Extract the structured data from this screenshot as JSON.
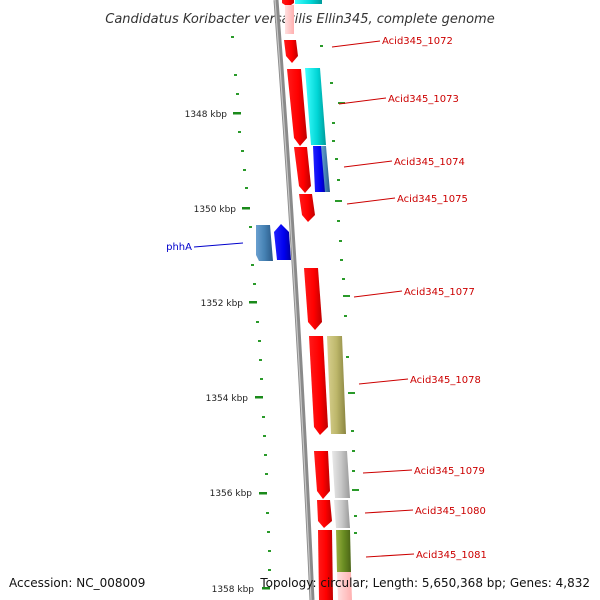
{
  "title": "Candidatus Koribacter versatilis Ellin345, complete genome",
  "footer": {
    "accession": "Accession: NC_008009",
    "summary": "Topology: circular; Length: 5,650,368 bp; Genes: 4,832"
  },
  "colors": {
    "backbone": "#777777",
    "tick": "#1a8a1a",
    "label_red": "#cc0000",
    "label_blue": "#0000cc"
  },
  "ticks": [
    {
      "label": "1348 kbp"
    },
    {
      "label": "1350 kbp"
    },
    {
      "label": "1352 kbp"
    },
    {
      "label": "1354 kbp"
    },
    {
      "label": "1356 kbp"
    },
    {
      "label": "1358 kbp"
    }
  ],
  "genes": [
    {
      "name": "Acid345_1072",
      "color": "#ff0000",
      "strand": "forward"
    },
    {
      "name": "Acid345_1073",
      "color": "#ff0000",
      "strand": "forward"
    },
    {
      "name": "Acid345_1074",
      "color": "#ff0000",
      "strand": "forward"
    },
    {
      "name": "Acid345_1075",
      "color": "#ff0000",
      "strand": "forward"
    },
    {
      "name": "phhA",
      "color": "#4682b4",
      "strand": "reverse"
    },
    {
      "name": "Acid345_1077",
      "color": "#ff0000",
      "strand": "forward"
    },
    {
      "name": "Acid345_1078",
      "color": "#ff0000",
      "strand": "forward"
    },
    {
      "name": "Acid345_1079",
      "color": "#ff0000",
      "strand": "forward"
    },
    {
      "name": "Acid345_1080",
      "color": "#ff0000",
      "strand": "forward"
    },
    {
      "name": "Acid345_1081",
      "color": "#ff0000",
      "strand": "forward"
    }
  ]
}
